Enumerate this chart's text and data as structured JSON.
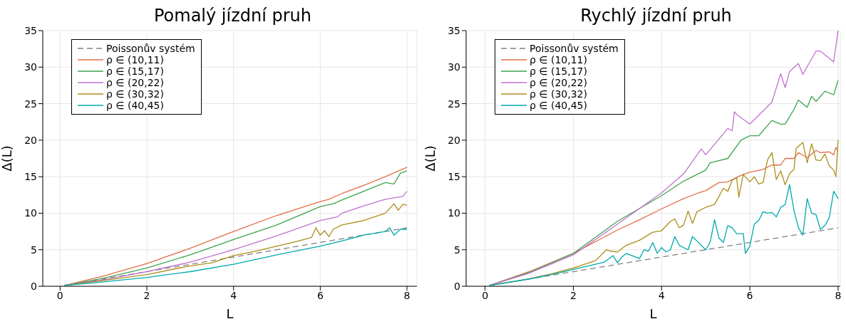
{
  "chart_data": [
    {
      "type": "line",
      "title": "Pomalý jízdní pruh",
      "xlabel": "L",
      "ylabel": "Δ(L)",
      "xlim": [
        -0.4,
        8.23
      ],
      "xticks": [
        0,
        2,
        4,
        6,
        8
      ],
      "ylim": [
        0,
        35
      ],
      "yticks": [
        0,
        5,
        10,
        15,
        20,
        25,
        30,
        35
      ],
      "grid": true,
      "legend": "top left",
      "series": [
        {
          "name": "Poissonův systém",
          "color": "#808080",
          "line_style": "dashed",
          "x": [
            0.1,
            8
          ],
          "values": [
            0.1,
            8
          ]
        },
        {
          "name": "ρ ∈ (10,11)",
          "color": "#e26f46",
          "x": [
            0.1,
            1,
            2,
            3,
            4,
            5,
            6,
            6.2,
            6.5,
            7,
            7.5,
            8
          ],
          "values": [
            0.1,
            1.4,
            3.1,
            5.2,
            7.5,
            9.7,
            11.6,
            11.9,
            12.7,
            13.8,
            15.0,
            16.3
          ]
        },
        {
          "name": "ρ ∈ (15,17)",
          "color": "#3da44d",
          "x": [
            0.1,
            1,
            2,
            3,
            4,
            5,
            6,
            6.3,
            6.5,
            7,
            7.5,
            7.7,
            7.85,
            8
          ],
          "values": [
            0.1,
            1.1,
            2.5,
            4.3,
            6.4,
            8.4,
            10.9,
            11.3,
            11.8,
            13.0,
            14.2,
            14.0,
            15.5,
            15.8
          ]
        },
        {
          "name": "ρ ∈ (20,22)",
          "color": "#c271d2",
          "x": [
            0.1,
            1,
            2,
            3,
            4,
            5,
            6,
            6.4,
            6.5,
            7,
            7.5,
            7.9,
            8
          ],
          "values": [
            0.1,
            0.9,
            2.0,
            3.3,
            5.0,
            6.9,
            9.0,
            9.5,
            10.0,
            11.0,
            11.9,
            12.3,
            13.0
          ]
        },
        {
          "name": "ρ ∈ (30,32)",
          "color": "#ac8e18",
          "x": [
            0.1,
            1,
            2,
            3,
            3.5,
            4,
            4.5,
            5,
            5.5,
            5.8,
            5.9,
            6.0,
            6.1,
            6.2,
            6.3,
            6.5,
            7,
            7.5,
            7.7,
            7.8,
            7.9,
            8
          ],
          "values": [
            0.1,
            0.8,
            1.6,
            2.8,
            3.2,
            4.2,
            4.8,
            5.5,
            6.2,
            6.7,
            8.0,
            7.0,
            7.6,
            6.8,
            7.8,
            8.4,
            9.0,
            10.0,
            11.3,
            10.4,
            11.2,
            11.1
          ]
        },
        {
          "name": "ρ ∈ (40,45)",
          "color": "#00a9ad",
          "x": [
            0.1,
            1,
            2,
            3,
            4,
            5,
            6,
            6.5,
            7,
            7.5,
            7.6,
            7.7,
            7.85,
            8
          ],
          "values": [
            0.1,
            0.6,
            1.2,
            2.0,
            3.0,
            4.3,
            5.5,
            6.2,
            7.0,
            7.5,
            8.0,
            7.0,
            7.8,
            7.8
          ]
        }
      ]
    },
    {
      "type": "line",
      "title": "Rychlý jízdní pruh",
      "xlabel": "L",
      "ylabel": "Δ(L)",
      "xlim": [
        -0.43,
        8.05
      ],
      "xticks": [
        0,
        2,
        4,
        6,
        8
      ],
      "ylim": [
        0,
        35
      ],
      "yticks": [
        0,
        5,
        10,
        15,
        20,
        25,
        30,
        35
      ],
      "grid": true,
      "legend": "top left",
      "series": [
        {
          "name": "Poissonův systém",
          "color": "#808080",
          "line_style": "dashed",
          "x": [
            0.1,
            8
          ],
          "values": [
            0.1,
            8
          ]
        },
        {
          "name": "ρ ∈ (10,11)",
          "color": "#e26f46",
          "x": [
            0.1,
            1,
            2,
            3,
            3.5,
            4,
            4.5,
            4.8,
            5,
            5.3,
            5.5,
            5.8,
            6,
            6.3,
            6.5,
            6.7,
            6.8,
            7,
            7.1,
            7.3,
            7.5,
            7.6,
            7.8,
            7.9,
            7.95,
            8
          ],
          "values": [
            0.1,
            2.0,
            4.5,
            7.7,
            9.1,
            10.6,
            12.0,
            12.7,
            13.1,
            14.2,
            14.3,
            15.2,
            15.6,
            16.0,
            16.6,
            16.6,
            17.5,
            17.5,
            18.3,
            17.6,
            18.6,
            18.3,
            18.4,
            18.0,
            19.0,
            18.5
          ]
        },
        {
          "name": "ρ ∈ (15,17)",
          "color": "#3da44d",
          "x": [
            0.1,
            1,
            2,
            3,
            4,
            4.5,
            5,
            5.1,
            5.5,
            5.8,
            6,
            6.2,
            6.5,
            6.7,
            6.8,
            7,
            7.1,
            7.3,
            7.4,
            7.5,
            7.7,
            7.9,
            8
          ],
          "values": [
            0.1,
            1.9,
            4.5,
            8.9,
            12.4,
            14.4,
            15.9,
            16.9,
            17.5,
            20.0,
            20.6,
            20.6,
            22.7,
            22.2,
            22.2,
            24.2,
            25.5,
            24.5,
            26.0,
            25.3,
            26.7,
            26.2,
            28.2
          ]
        },
        {
          "name": "ρ ∈ (20,22)",
          "color": "#c271d2",
          "x": [
            0.1,
            1,
            2,
            3,
            4,
            4.5,
            4.9,
            5,
            5.5,
            5.6,
            5.65,
            5.7,
            6,
            6.5,
            6.7,
            6.8,
            6.9,
            7.1,
            7.2,
            7.5,
            7.6,
            7.9,
            8
          ],
          "values": [
            0.1,
            1.8,
            4.3,
            8.5,
            12.8,
            15.4,
            18.8,
            18.0,
            21.6,
            21.3,
            23.9,
            23.5,
            22.2,
            25.2,
            29.1,
            27.2,
            29.4,
            30.5,
            29.0,
            32.2,
            32.2,
            30.7,
            35
          ]
        },
        {
          "name": "ρ ∈ (30,32)",
          "color": "#ac8e18",
          "x": [
            0.1,
            1,
            1.5,
            2,
            2.5,
            2.75,
            2.85,
            3,
            3.2,
            3.5,
            3.8,
            4,
            4.2,
            4.3,
            4.4,
            4.5,
            4.6,
            4.7,
            4.8,
            5,
            5.2,
            5.4,
            5.5,
            5.6,
            5.7,
            5.75,
            5.85,
            6,
            6.1,
            6.2,
            6.3,
            6.4,
            6.5,
            6.6,
            6.7,
            6.8,
            6.9,
            7,
            7.05,
            7.2,
            7.3,
            7.4,
            7.5,
            7.6,
            7.7,
            7.8,
            7.9,
            7.95,
            8
          ],
          "values": [
            0.1,
            1.0,
            1.7,
            2.5,
            3.5,
            5.0,
            4.8,
            4.7,
            5.6,
            6.3,
            7.4,
            7.6,
            8.9,
            9.2,
            8.0,
            8.4,
            10.3,
            8.6,
            10.2,
            10.8,
            11.2,
            13.4,
            13.0,
            14.5,
            14.9,
            12.2,
            15.3,
            14.3,
            15.0,
            14.0,
            14.2,
            17.3,
            18.3,
            14.6,
            15.8,
            13.9,
            15.4,
            16.0,
            18.9,
            19.7,
            16.9,
            19.5,
            17.3,
            17.2,
            18.1,
            16.5,
            15.9,
            15.0,
            20.0
          ]
        },
        {
          "name": "ρ ∈ (40,45)",
          "color": "#00a9ad",
          "x": [
            0.1,
            1,
            1.5,
            2,
            2.2,
            2.5,
            2.7,
            2.9,
            3,
            3.1,
            3.2,
            3.5,
            3.6,
            3.7,
            3.8,
            3.9,
            4,
            4.1,
            4.2,
            4.3,
            4.4,
            4.6,
            4.7,
            4.8,
            5,
            5.1,
            5.2,
            5.3,
            5.4,
            5.5,
            5.6,
            5.7,
            5.85,
            5.9,
            6.0,
            6.1,
            6.2,
            6.3,
            6.4,
            6.5,
            6.6,
            6.7,
            6.8,
            6.9,
            7.0,
            7.1,
            7.2,
            7.3,
            7.4,
            7.5,
            7.6,
            7.7,
            7.8,
            7.9,
            8.0
          ],
          "values": [
            0.1,
            1.0,
            1.6,
            2.3,
            2.6,
            3.0,
            3.3,
            4.2,
            3.2,
            4.0,
            4.5,
            3.8,
            5.0,
            4.8,
            6.0,
            4.5,
            5.3,
            4.7,
            5.0,
            6.8,
            5.6,
            5.0,
            6.8,
            6.2,
            5.0,
            6.0,
            9.1,
            6.6,
            6.0,
            8.3,
            8.0,
            7.2,
            7.2,
            4.5,
            5.5,
            8.5,
            9.0,
            10.2,
            10.0,
            10.1,
            9.5,
            10.8,
            11.2,
            13.9,
            10.4,
            8.0,
            7.0,
            12.0,
            10.0,
            9.8,
            7.8,
            8.3,
            9.4,
            13.0,
            12.0
          ]
        }
      ]
    }
  ]
}
